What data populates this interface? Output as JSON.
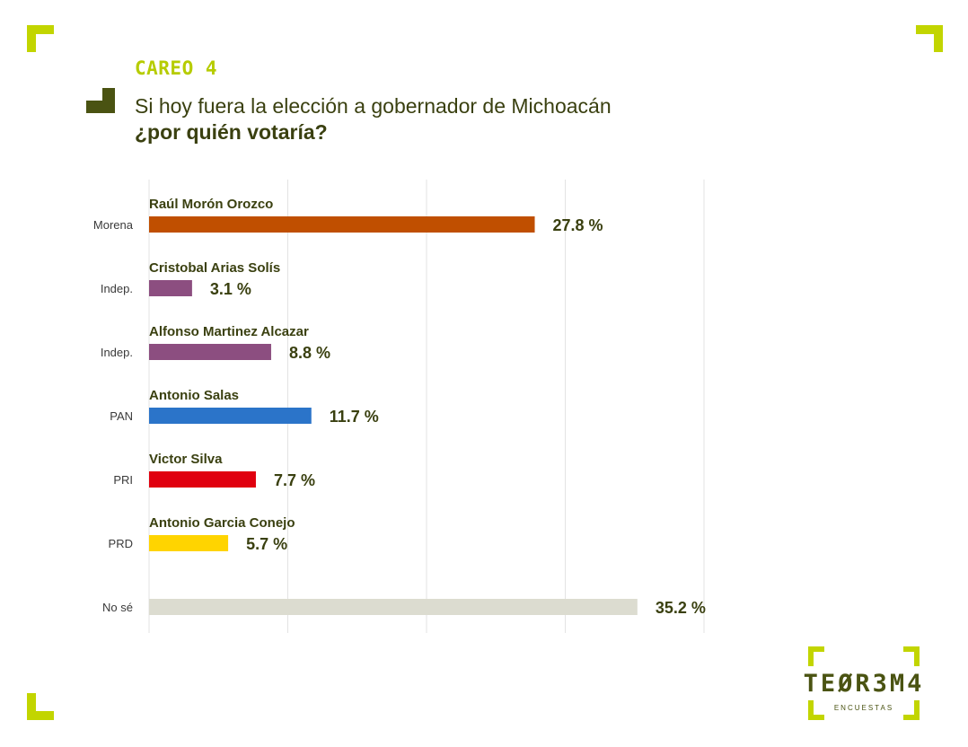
{
  "header": {
    "kicker": "CAREO 4",
    "question_line1": "Si hoy fuera la elección a gobernador de Michoacán",
    "question_line2": "¿por quién votaría?"
  },
  "brand": {
    "logo_word": "TEØR3M4",
    "logo_sub": "ENCUESTAS",
    "accent_color": "#c2d500",
    "dark_color": "#4a5312"
  },
  "chart_data": {
    "type": "bar",
    "orientation": "horizontal",
    "unit": "%",
    "xlim": [
      0,
      40
    ],
    "grid": true,
    "rows": [
      {
        "party": "Morena",
        "candidate": "Raúl Morón Orozco",
        "value": 27.8,
        "label": "27.8 %",
        "color": "#c04f00"
      },
      {
        "party": "Indep.",
        "candidate": "Cristobal Arias Solís",
        "value": 3.1,
        "label": "3.1 %",
        "color": "#8c4e80"
      },
      {
        "party": "Indep.",
        "candidate": "Alfonso Martinez Alcazar",
        "value": 8.8,
        "label": "8.8 %",
        "color": "#8c4e80"
      },
      {
        "party": "PAN",
        "candidate": "Antonio Salas",
        "value": 11.7,
        "label": "11.7 %",
        "color": "#2b74c9"
      },
      {
        "party": "PRI",
        "candidate": "Victor Silva",
        "value": 7.7,
        "label": "7.7 %",
        "color": "#e0000f"
      },
      {
        "party": "PRD",
        "candidate": "Antonio Garcia Conejo",
        "value": 5.7,
        "label": "5.7 %",
        "color": "#ffd400"
      },
      {
        "party": "No sé",
        "candidate": "",
        "value": 35.2,
        "label": "35.2 %",
        "color": "#dcdcd0"
      }
    ]
  }
}
